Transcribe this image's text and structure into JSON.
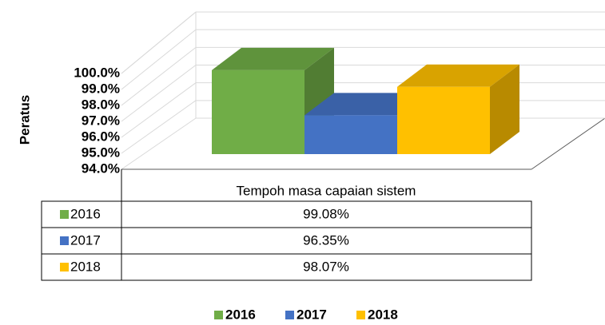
{
  "chart_data": {
    "type": "bar3d",
    "y_label": "Peratus",
    "categories": [
      "Tempoh masa capaian sistem"
    ],
    "series": [
      {
        "name": "2016",
        "color": "#70ad47",
        "values": [
          99.08
        ],
        "value_labels": [
          "99.08%"
        ]
      },
      {
        "name": "2017",
        "color": "#4472c4",
        "values": [
          96.35
        ],
        "value_labels": [
          "96.35%"
        ]
      },
      {
        "name": "2018",
        "color": "#ffc000",
        "values": [
          98.07
        ],
        "value_labels": [
          "98.07%"
        ]
      }
    ],
    "ylim": [
      94,
      100
    ],
    "yticks": [
      {
        "value": 94,
        "label": "94.0%"
      },
      {
        "value": 95,
        "label": "95.0%"
      },
      {
        "value": 96,
        "label": "96.0%"
      },
      {
        "value": 97,
        "label": "97.0%"
      },
      {
        "value": 98,
        "label": "98.0%"
      },
      {
        "value": 99,
        "label": "99.0%"
      },
      {
        "value": 100,
        "label": "100.0%"
      }
    ],
    "grid": true,
    "legend": "bottom",
    "data_table": true
  }
}
